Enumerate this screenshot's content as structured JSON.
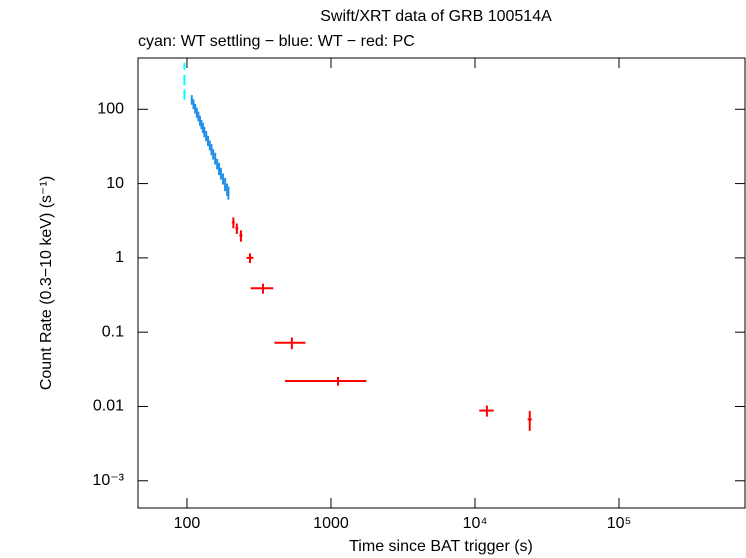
{
  "chart_data": {
    "type": "scatter",
    "title": "Swift/XRT data of GRB 100514A",
    "subtitle": "cyan: WT settling − blue: WT − red: PC",
    "x_label": "Time since BAT trigger (s)",
    "y_label": "Count Rate (0.3−10 keV) (s⁻¹)",
    "xscale": "log",
    "yscale": "log",
    "xlim": [
      45.7,
      750000
    ],
    "ylim": [
      0.00043,
      490
    ],
    "xticks": [
      100,
      1000,
      {
        "value": 10000,
        "label": "10⁴"
      },
      {
        "value": 100000,
        "label": "10⁵"
      }
    ],
    "yticks": [
      {
        "value": 0.001,
        "label": "10⁻³"
      },
      0.01,
      0.1,
      1,
      10,
      100
    ],
    "series": [
      {
        "color": "#00ffff",
        "x": [
          96,
          96,
          96
        ],
        "values": [
          380,
          250,
          160
        ],
        "yerr": [
          40,
          40,
          25
        ]
      },
      {
        "color": "#1f8fe8",
        "x": [
          108,
          111,
          114,
          117,
          120,
          123,
          126,
          129,
          132,
          136,
          140,
          144,
          148,
          152,
          157,
          162,
          167,
          172,
          178,
          184,
          190,
          194
        ],
        "values": [
          135,
          118,
          103,
          91,
          81,
          71,
          63,
          57,
          50,
          44,
          38,
          33,
          29,
          25,
          22,
          18.5,
          16,
          13.8,
          11.7,
          9.9,
          8.4,
          7.6
        ],
        "yerr": [
          20,
          18,
          15,
          14,
          12,
          11,
          9,
          9,
          8,
          7,
          6,
          5,
          5,
          4,
          4,
          3,
          3,
          2.5,
          2,
          2,
          1.6,
          1.5
        ]
      },
      {
        "color": "#ff0000",
        "x": [
          210,
          222,
          237,
          274,
          337,
          535,
          1120,
          12100,
          24000
        ],
        "values": [
          3.0,
          2.5,
          2.0,
          1.0,
          0.39,
          0.072,
          0.022,
          0.0088,
          0.0067
        ],
        "yerr": [
          0.5,
          0.4,
          0.35,
          0.15,
          0.06,
          0.013,
          0.003,
          0.0015,
          0.002
        ],
        "xerr": [
          5,
          5,
          6,
          15,
          60,
          130,
          640,
          1400,
          800
        ]
      }
    ]
  }
}
